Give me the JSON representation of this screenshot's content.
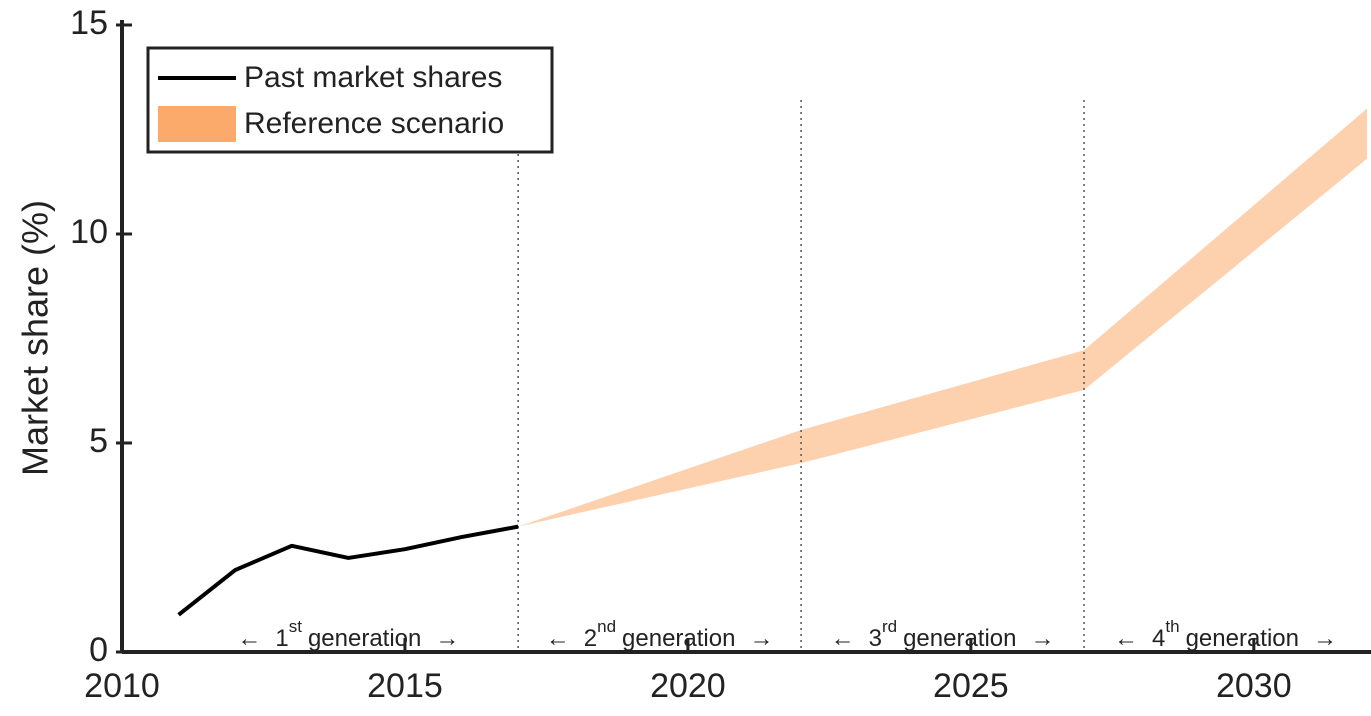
{
  "chart_data": {
    "type": "line",
    "ylabel": "Market share (%)",
    "xlim": [
      2010,
      2032
    ],
    "xticks": [
      2010,
      2015,
      2020,
      2025,
      2030
    ],
    "ylim": [
      0,
      15
    ],
    "yticks": [
      0,
      5,
      10,
      15
    ],
    "legend": "upper left",
    "series": [
      {
        "name": "Past market shares",
        "color": "#000000",
        "x": [
          2011,
          2012,
          2013,
          2014,
          2015,
          2016,
          2017
        ],
        "values": [
          0.89,
          1.96,
          2.54,
          2.25,
          2.46,
          2.75,
          3.0
        ]
      },
      {
        "name": "Reference scenario",
        "type": "band",
        "color": "#fcaa6c",
        "x": [
          2017,
          2022,
          2027,
          2032
        ],
        "lower": [
          3.0,
          4.52,
          6.27,
          11.8
        ],
        "upper": [
          3.0,
          5.31,
          7.22,
          13.0
        ]
      }
    ],
    "regions": [
      {
        "start": 2011,
        "end": 2017,
        "ordinal": "1",
        "suffix": "st",
        "label": "generation"
      },
      {
        "start": 2017,
        "end": 2022,
        "ordinal": "2",
        "suffix": "nd",
        "label": "generation"
      },
      {
        "start": 2022,
        "end": 2027,
        "ordinal": "3",
        "suffix": "rd",
        "label": "generation"
      },
      {
        "start": 2027,
        "end": 2032,
        "ordinal": "4",
        "suffix": "th",
        "label": "generation"
      }
    ],
    "arrow_left": "←",
    "arrow_right": "→"
  }
}
